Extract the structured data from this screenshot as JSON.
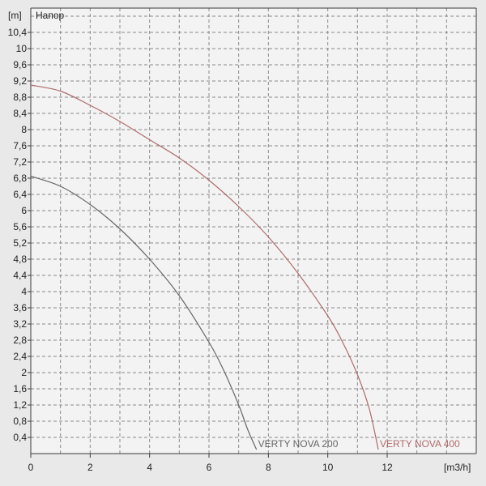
{
  "chart_data": {
    "type": "line",
    "title": "Напор",
    "ylabel": "[m]",
    "xlabel": "[m3/h]",
    "xlim": [
      0,
      15
    ],
    "ylim": [
      0,
      11
    ],
    "grid": true,
    "x_ticks": [
      0,
      2,
      4,
      6,
      8,
      10,
      12
    ],
    "y_ticks": [
      "0,4",
      "0,8",
      "1,2",
      "1,6",
      "2",
      "2,4",
      "2,8",
      "3,2",
      "3,6",
      "4",
      "4,4",
      "4,8",
      "5,2",
      "5,6",
      "6",
      "6,4",
      "6,8",
      "7,2",
      "7,6",
      "8",
      "8,4",
      "8,8",
      "9,2",
      "9,6",
      "10",
      "10,4"
    ],
    "y_tick_values": [
      0.4,
      0.8,
      1.2,
      1.6,
      2,
      2.4,
      2.8,
      3.2,
      3.6,
      4,
      4.4,
      4.8,
      5.2,
      5.6,
      6,
      6.4,
      6.8,
      7.2,
      7.6,
      8,
      8.4,
      8.8,
      9.2,
      9.6,
      10,
      10.4
    ],
    "series": [
      {
        "name": "VERTY NOVA 200",
        "color": "#666666",
        "x": [
          0,
          1,
          2,
          3,
          4,
          5,
          6,
          6.5,
          7,
          7.3,
          7.6
        ],
        "y": [
          6.85,
          6.6,
          6.15,
          5.55,
          4.8,
          3.9,
          2.75,
          2.05,
          1.2,
          0.6,
          0.1
        ]
      },
      {
        "name": "VERTY NOVA 400",
        "color": "#b06a6a",
        "x": [
          0,
          1,
          2,
          3,
          4,
          5,
          6,
          7,
          8,
          9,
          10,
          10.5,
          11,
          11.4,
          11.7
        ],
        "y": [
          9.1,
          8.95,
          8.6,
          8.2,
          7.75,
          7.3,
          6.75,
          6.1,
          5.35,
          4.45,
          3.4,
          2.75,
          1.95,
          1.1,
          0.1
        ]
      }
    ]
  }
}
